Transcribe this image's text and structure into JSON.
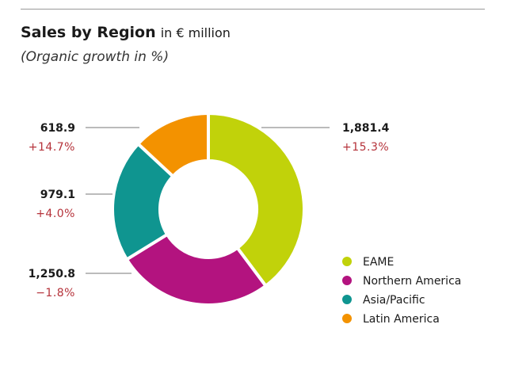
{
  "chart_data": {
    "type": "pie",
    "variant": "donut",
    "title": "Sales by Region",
    "unit": "in € million",
    "subtitle": "(Organic growth in %)",
    "categories": [
      "EAME",
      "Northern America",
      "Asia/Pacific",
      "Latin America"
    ],
    "values": [
      1881.4,
      1250.8,
      979.1,
      618.9
    ],
    "value_labels": [
      "1,881.4",
      "1,250.8",
      "979.1",
      "618.9"
    ],
    "growth_labels": [
      "+15.3%",
      "−1.8%",
      "+4.0%",
      "+14.7%"
    ],
    "growth": [
      15.3,
      -1.8,
      4.0,
      14.7
    ],
    "colors": [
      "#c1d20a",
      "#b3137f",
      "#0f9590",
      "#f39200"
    ],
    "legend_position": "bottom-right"
  }
}
